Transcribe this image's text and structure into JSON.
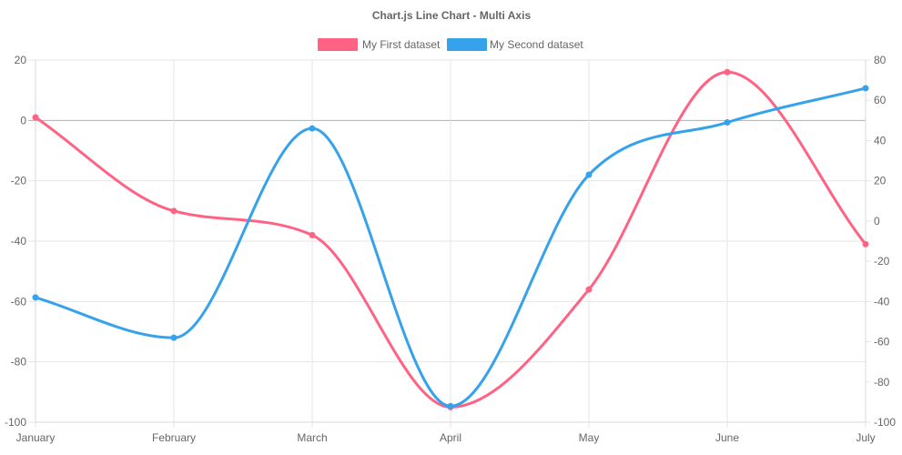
{
  "chart_data": {
    "type": "line",
    "title": "Chart.js Line Chart - Multi Axis",
    "categories": [
      "January",
      "February",
      "March",
      "April",
      "May",
      "June",
      "July"
    ],
    "axes": {
      "y_left": {
        "min": -100,
        "max": 20,
        "ticks": [
          20,
          0,
          -20,
          -40,
          -60,
          -80,
          -100
        ]
      },
      "y_right": {
        "min": -100,
        "max": 80,
        "ticks": [
          80,
          60,
          40,
          20,
          0,
          -20,
          -40,
          -60,
          -80,
          -100
        ]
      }
    },
    "grid": true,
    "legend_position": "top",
    "series": [
      {
        "name": "My First dataset",
        "axis": "left",
        "color": "#ff6384",
        "values": [
          1,
          -30,
          -38,
          -95,
          -56,
          16,
          -41
        ]
      },
      {
        "name": "My Second dataset",
        "axis": "right",
        "color": "#36a2eb",
        "values": [
          -38,
          -58,
          46,
          -92,
          23,
          49,
          66
        ]
      }
    ]
  }
}
